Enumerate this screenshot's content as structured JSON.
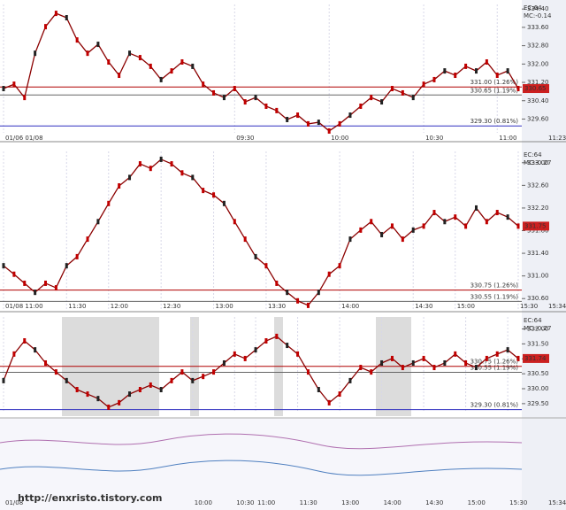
{
  "chart_data": [
    {
      "type": "line",
      "color": "#8b0000",
      "indicator": [
        "EC:64",
        "MC:-0.14"
      ],
      "current_time": "11:23",
      "current_label": "330.65",
      "values": [
        330.93,
        331.12,
        330.54,
        332.47,
        333.63,
        334.21,
        334.02,
        333.05,
        332.47,
        332.86,
        332.09,
        331.51,
        332.47,
        332.28,
        331.9,
        331.32,
        331.7,
        332.09,
        331.9,
        331.12,
        330.74,
        330.54,
        330.93,
        330.35,
        330.54,
        330.16,
        329.97,
        329.58,
        329.77,
        329.39,
        329.46,
        329.08,
        329.39,
        329.77,
        330.16,
        330.54,
        330.35,
        330.93,
        330.74,
        330.54,
        331.12,
        331.32,
        331.7,
        331.51,
        331.9,
        331.7,
        332.09,
        331.51,
        331.7,
        330.93
      ],
      "xlim": [
        0,
        49
      ],
      "xticks": [
        {
          "value": 0,
          "label": "01/06 01/08"
        },
        {
          "value": 22,
          "label": "09:30"
        },
        {
          "value": 31,
          "label": "10:00"
        },
        {
          "value": 40,
          "label": "10:30"
        },
        {
          "value": 47,
          "label": "11:00"
        }
      ],
      "ylim": [
        329.0,
        334.6
      ],
      "yticks": [
        {
          "value": 329.6,
          "label": "329.60"
        },
        {
          "value": 330.4,
          "label": "330.40"
        },
        {
          "value": 331.2,
          "label": "331.20"
        },
        {
          "value": 332,
          "label": "332.00"
        },
        {
          "value": 332.8,
          "label": "332.80"
        },
        {
          "value": 333.6,
          "label": "333.60"
        },
        {
          "value": 334.4,
          "label": "334.40"
        }
      ],
      "annotations": [
        {
          "value": 331,
          "label": "331.00 (1.26%)",
          "color": "#b00000"
        },
        {
          "value": 330.65,
          "label": "330.65 (1.19%)",
          "color": "#666666"
        },
        {
          "value": 329.3,
          "label": "329.30 (0.81%)",
          "color": "#3030c0"
        }
      ]
    },
    {
      "type": "line",
      "color": "#8b0000",
      "indicator": [
        "EC:64",
        "MC:-0.27"
      ],
      "current_time": "15:34",
      "current_label": "331.75",
      "values": [
        331.18,
        331.03,
        330.87,
        330.71,
        330.87,
        330.79,
        331.18,
        331.34,
        331.65,
        331.96,
        332.28,
        332.59,
        332.74,
        332.98,
        332.9,
        333.06,
        332.98,
        332.82,
        332.74,
        332.51,
        332.43,
        332.28,
        331.96,
        331.65,
        331.34,
        331.18,
        330.87,
        330.71,
        330.56,
        330.48,
        330.71,
        331.03,
        331.18,
        331.65,
        331.81,
        331.96,
        331.73,
        331.88,
        331.65,
        331.81,
        331.88,
        332.12,
        331.96,
        332.04,
        331.88,
        332.2,
        331.96,
        332.12,
        332.04,
        331.88
      ],
      "xlim": [
        0,
        49
      ],
      "xticks": [
        {
          "value": 0,
          "label": "01/08 11:00"
        },
        {
          "value": 6,
          "label": "11:30"
        },
        {
          "value": 10,
          "label": "12:00"
        },
        {
          "value": 15,
          "label": "12:30"
        },
        {
          "value": 20,
          "label": "13:00"
        },
        {
          "value": 25,
          "label": "13:30"
        },
        {
          "value": 32,
          "label": "14:00"
        },
        {
          "value": 39,
          "label": "14:30"
        },
        {
          "value": 43,
          "label": "15:00"
        },
        {
          "value": 49,
          "label": "15:30"
        }
      ],
      "ylim": [
        330.4,
        333.2
      ],
      "yticks": [
        {
          "value": 330.6,
          "label": "330.60"
        },
        {
          "value": 331,
          "label": "331.00"
        },
        {
          "value": 331.4,
          "label": "331.40"
        },
        {
          "value": 331.8,
          "label": "331.80"
        },
        {
          "value": 332.2,
          "label": "332.20"
        },
        {
          "value": 332.6,
          "label": "332.60"
        },
        {
          "value": 333,
          "label": "333.00"
        }
      ],
      "annotations": [
        {
          "value": 330.75,
          "label": "330.75 (1.26%)",
          "color": "#b00000"
        },
        {
          "value": 330.55,
          "label": "330.55 (1.19%)",
          "color": "#666666"
        }
      ]
    },
    {
      "type": "line",
      "color": "#8b0000",
      "indicator": [
        "EC:64",
        "MC:-0.27"
      ],
      "current_time": "15:34",
      "current_label": "331.74",
      "values": [
        330.27,
        331.16,
        331.6,
        331.3,
        330.86,
        330.56,
        330.27,
        329.97,
        329.82,
        329.67,
        329.38,
        329.53,
        329.82,
        329.97,
        330.12,
        329.97,
        330.27,
        330.56,
        330.27,
        330.41,
        330.56,
        330.86,
        331.16,
        331.01,
        331.3,
        331.6,
        331.75,
        331.45,
        331.16,
        330.56,
        329.97,
        329.53,
        329.82,
        330.27,
        330.71,
        330.56,
        330.86,
        331.01,
        330.71,
        330.86,
        331.01,
        330.71,
        330.86,
        331.16,
        330.86,
        330.71,
        331.01,
        331.16,
        331.3,
        331.01
      ],
      "xlim": [
        0,
        49
      ],
      "xticks": [
        {
          "value": 0,
          "label": "01/08"
        },
        {
          "value": 18,
          "label": "10:00"
        },
        {
          "value": 22,
          "label": "10:30"
        },
        {
          "value": 24,
          "label": "11:00"
        },
        {
          "value": 28,
          "label": "11:30"
        },
        {
          "value": 32,
          "label": "13:00"
        },
        {
          "value": 36,
          "label": "14:00"
        },
        {
          "value": 40,
          "label": "14:30"
        },
        {
          "value": 44,
          "label": "15:00"
        },
        {
          "value": 48,
          "label": "15:30"
        }
      ],
      "ylim": [
        329.2,
        332.4
      ],
      "yticks": [
        {
          "value": 329.5,
          "label": "329.50"
        },
        {
          "value": 330,
          "label": "330.00"
        },
        {
          "value": 330.5,
          "label": "330.50"
        },
        {
          "value": 331,
          "label": "331.00"
        },
        {
          "value": 331.5,
          "label": "331.50"
        },
        {
          "value": 332,
          "label": "332.00"
        }
      ],
      "annotations": [
        {
          "value": 330.75,
          "label": "330.75 (1.26%)",
          "color": "#b00000"
        },
        {
          "value": 330.55,
          "label": "330.55 (1.19%)",
          "color": "#666666"
        },
        {
          "value": 329.3,
          "label": "329.30 (0.81%)",
          "color": "#3030c0"
        }
      ],
      "watermark": "http://enxristo.tistory.com"
    }
  ]
}
